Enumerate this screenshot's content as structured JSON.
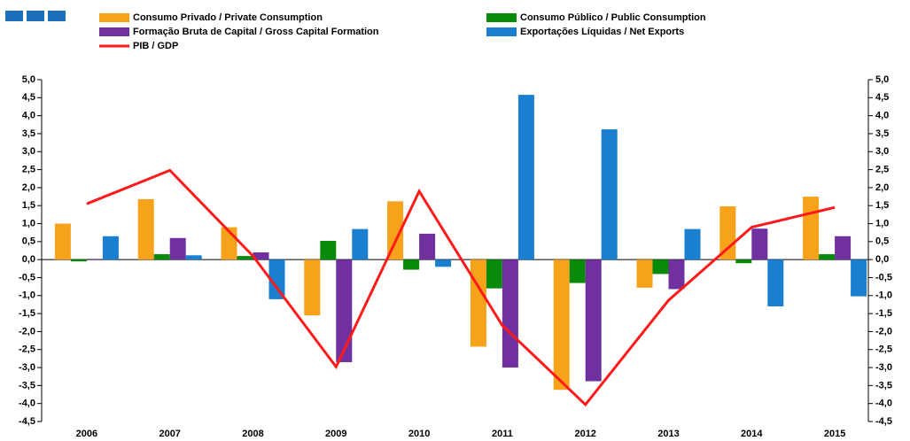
{
  "chart_data": {
    "type": "bar_line",
    "categories": [
      "2006",
      "2007",
      "2008",
      "2009",
      "2010",
      "2011",
      "2012",
      "2013",
      "2014",
      "2015"
    ],
    "series": [
      {
        "name": "Consumo Privado / Private Consumption",
        "color": "#f7a21b",
        "values": [
          1.0,
          1.68,
          0.9,
          -1.55,
          1.62,
          -2.42,
          -3.62,
          -0.78,
          1.48,
          1.75
        ]
      },
      {
        "name": "Consumo Público / Public Consumption",
        "color": "#0a8a0a",
        "values": [
          -0.05,
          0.15,
          0.1,
          0.52,
          -0.28,
          -0.8,
          -0.65,
          -0.4,
          -0.1,
          0.15
        ]
      },
      {
        "name": "Formação Bruta de Capital / Gross Capital Formation",
        "color": "#7030a0",
        "values": [
          0.02,
          0.6,
          0.2,
          -2.85,
          0.72,
          -3.0,
          -3.38,
          -0.82,
          0.86,
          0.65
        ]
      },
      {
        "name": "Exportações Líquidas / Net Exports",
        "color": "#1a7fd1",
        "values": [
          0.65,
          0.12,
          -1.1,
          0.85,
          -0.2,
          4.58,
          3.62,
          0.85,
          -1.3,
          -1.02
        ]
      },
      {
        "name": "PIB / GDP",
        "color": "#ff1a1a",
        "type": "line",
        "values": [
          1.55,
          2.48,
          0.1,
          -2.98,
          1.9,
          -1.83,
          -4.03,
          -1.13,
          0.9,
          1.45
        ]
      }
    ],
    "ylim": [
      -4.5,
      5.0
    ],
    "yticks": [
      {
        "value": -4.5,
        "label": "-4,5"
      },
      {
        "value": -4.0,
        "label": "-4,0"
      },
      {
        "value": -3.5,
        "label": "-3,5"
      },
      {
        "value": -3.0,
        "label": "-3,0"
      },
      {
        "value": -2.5,
        "label": "-2,5"
      },
      {
        "value": -2.0,
        "label": "-2,0"
      },
      {
        "value": -1.5,
        "label": "-1,5"
      },
      {
        "value": -1.0,
        "label": "-1,0"
      },
      {
        "value": -0.5,
        "label": "-0,5"
      },
      {
        "value": 0.0,
        "label": "0,0"
      },
      {
        "value": 0.5,
        "label": "0,5"
      },
      {
        "value": 1.0,
        "label": "1,0"
      },
      {
        "value": 1.5,
        "label": "1,5"
      },
      {
        "value": 2.0,
        "label": "2,0"
      },
      {
        "value": 2.5,
        "label": "2,5"
      },
      {
        "value": 3.0,
        "label": "3,0"
      },
      {
        "value": 3.5,
        "label": "3,5"
      },
      {
        "value": 4.0,
        "label": "4,0"
      },
      {
        "value": 4.5,
        "label": "4,5"
      },
      {
        "value": 5.0,
        "label": "5,0"
      }
    ],
    "grid": false,
    "legend": "top"
  }
}
